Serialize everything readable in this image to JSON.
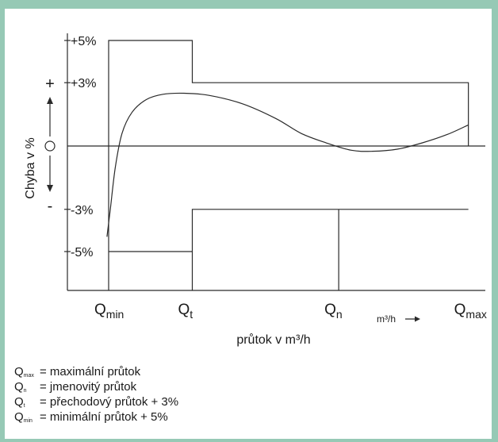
{
  "chart_data": {
    "type": "line",
    "xlabel": "průtok v m³/h",
    "x_unit_label": "m³/h",
    "ylabel": "Chyba v %",
    "y_sign_plus": "+",
    "y_sign_zero": "O",
    "y_sign_minus": "-",
    "y_ticks": [
      "+5%",
      "+3%",
      "-3%",
      "-5%"
    ],
    "x_ticks": [
      {
        "sym": "Q",
        "sub": "min"
      },
      {
        "sym": "Q",
        "sub": "t"
      },
      {
        "sym": "Q",
        "sub": "n"
      },
      {
        "sym": "Q",
        "sub": "max"
      }
    ],
    "x_tick_values": [
      0,
      1,
      2.75,
      4.3
    ],
    "error_limits": {
      "low_zone": {
        "from": 0,
        "to": 1,
        "upper": 5,
        "lower": -5
      },
      "high_zone": {
        "from": 1,
        "to": 4.3,
        "upper": 3,
        "lower": -3
      }
    },
    "series": [
      {
        "points": [
          [
            -0.02,
            -4.3
          ],
          [
            0.02,
            -3.0
          ],
          [
            0.08,
            -1.0
          ],
          [
            0.16,
            0.6
          ],
          [
            0.28,
            1.6
          ],
          [
            0.45,
            2.2
          ],
          [
            0.65,
            2.45
          ],
          [
            0.9,
            2.5
          ],
          [
            1.2,
            2.4
          ],
          [
            1.6,
            2.0
          ],
          [
            2.0,
            1.3
          ],
          [
            2.3,
            0.6
          ],
          [
            2.6,
            0.15
          ],
          [
            2.9,
            -0.2
          ],
          [
            3.15,
            -0.25
          ],
          [
            3.45,
            -0.15
          ],
          [
            3.75,
            0.15
          ],
          [
            4.05,
            0.55
          ],
          [
            4.3,
            1.0
          ]
        ]
      }
    ]
  },
  "legend": [
    {
      "sym": "Q",
      "sub": "max",
      "text": "= maximální průtok"
    },
    {
      "sym": "Q",
      "sub": "n",
      "text": "= jmenovitý průtok"
    },
    {
      "sym": "Q",
      "sub": "t",
      "text": "= přechodový průtok + 3%"
    },
    {
      "sym": "Q",
      "sub": "min",
      "text": "= minimální průtok + 5%"
    }
  ]
}
